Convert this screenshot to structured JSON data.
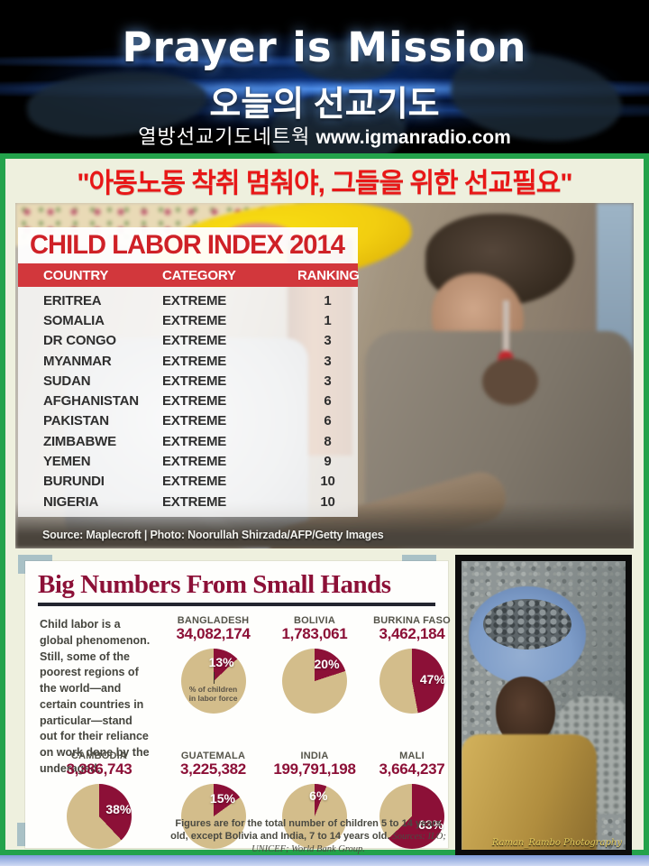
{
  "header": {
    "title": "Prayer is Mission",
    "subtitle_ko": "오늘의 선교기도",
    "org_ko": "열방선교기도네트웍",
    "website": "www.igmanradio.com"
  },
  "banner": {
    "text": "\"아동노동 착취 멈춰야, 그들을 위한 선교필요\""
  },
  "labor_table": {
    "title": "CHILD LABOR INDEX 2014",
    "columns": {
      "country": "COUNTRY",
      "category": "CATEGORY",
      "ranking": "RANKING"
    },
    "rows": [
      {
        "country": "ERITREA",
        "category": "EXTREME",
        "ranking": "1"
      },
      {
        "country": "SOMALIA",
        "category": "EXTREME",
        "ranking": "1"
      },
      {
        "country": "DR CONGO",
        "category": "EXTREME",
        "ranking": "3"
      },
      {
        "country": "MYANMAR",
        "category": "EXTREME",
        "ranking": "3"
      },
      {
        "country": "SUDAN",
        "category": "EXTREME",
        "ranking": "3"
      },
      {
        "country": "AFGHANISTAN",
        "category": "EXTREME",
        "ranking": "6"
      },
      {
        "country": "PAKISTAN",
        "category": "EXTREME",
        "ranking": "6"
      },
      {
        "country": "ZIMBABWE",
        "category": "EXTREME",
        "ranking": "8"
      },
      {
        "country": "YEMEN",
        "category": "EXTREME",
        "ranking": "9"
      },
      {
        "country": "BURUNDI",
        "category": "EXTREME",
        "ranking": "10"
      },
      {
        "country": "NIGERIA",
        "category": "EXTREME",
        "ranking": "10"
      }
    ],
    "source_line": "Source: Maplecroft  |  Photo: Noorullah Shirzada/AFP/Getty Images"
  },
  "infographic": {
    "title": "Big Numbers From Small Hands",
    "intro": "Child labor is a global phenomenon. Still, some of the poorest regions of the world—and certain countries in particular—stand out for their reliance on work done by the underaged.",
    "pie_note": "% of children in labor force",
    "footnote_text": "Figures are for the total number of children 5 to 14 years old, except Bolivia and India, 7 to 14 years old.",
    "footnote_sources": "Sources: ILO; UNICEF; World Bank Group."
  },
  "chart_data": {
    "type": "pie",
    "title": "Big Numbers From Small Hands",
    "legend_note": "maroon slice = % of children in labor force; totals shown under country names",
    "colors": {
      "slice": "#8c1037",
      "pie": "#d3bd8b"
    },
    "series": [
      {
        "name": "BANGLADESH",
        "total": "34,082,174",
        "percent": 13
      },
      {
        "name": "BOLIVIA",
        "total": "1,783,061",
        "percent": 20
      },
      {
        "name": "BURKINA FASO",
        "total": "3,462,184",
        "percent": 47
      },
      {
        "name": "CAMBODIA",
        "total": "3,386,743",
        "percent": 38
      },
      {
        "name": "GUATEMALA",
        "total": "3,225,382",
        "percent": 15
      },
      {
        "name": "INDIA",
        "total": "199,791,198",
        "percent": 6
      },
      {
        "name": "MALI",
        "total": "3,664,237",
        "percent": 63
      }
    ]
  },
  "side_photo": {
    "watermark": "Raman_Rambo Photography"
  }
}
